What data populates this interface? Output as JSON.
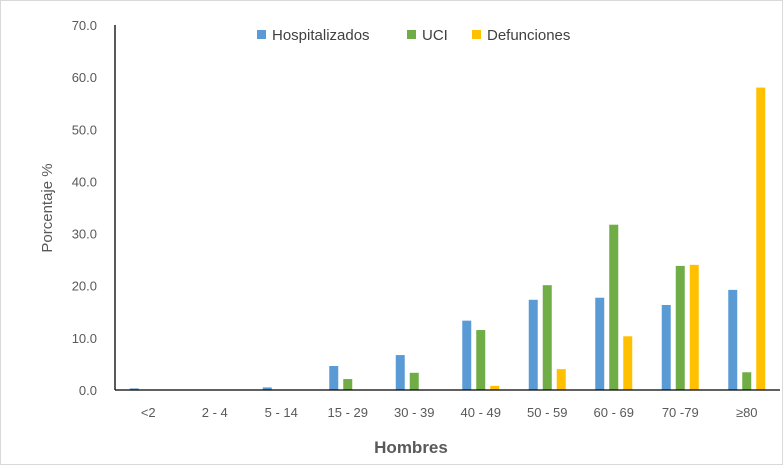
{
  "chart_data": {
    "type": "bar",
    "title": "",
    "xlabel": "Hombres",
    "ylabel": "Porcentaje %",
    "ylim": [
      0,
      70
    ],
    "yticks": [
      "0.0",
      "10.0",
      "20.0",
      "30.0",
      "40.0",
      "50.0",
      "60.0",
      "70.0"
    ],
    "grid": false,
    "legend_position": "top-center",
    "categories": [
      "<2",
      "2 - 4",
      "5 - 14",
      "15 - 29",
      "30 - 39",
      "40 - 49",
      "50 - 59",
      "60 - 69",
      "70 -79",
      "≥80"
    ],
    "series": [
      {
        "name": "Hospitalizados",
        "color": "#5b9bd5",
        "values": [
          0.3,
          0.0,
          0.5,
          4.6,
          6.7,
          13.3,
          17.3,
          17.7,
          16.3,
          19.2
        ]
      },
      {
        "name": "UCI",
        "color": "#70ad47",
        "values": [
          0.0,
          0.0,
          0.0,
          2.1,
          3.3,
          11.5,
          20.1,
          31.7,
          23.8,
          3.4
        ]
      },
      {
        "name": "Defunciones",
        "color": "#ffc000",
        "values": [
          0.0,
          0.0,
          0.0,
          0.0,
          0.0,
          0.8,
          4.0,
          10.3,
          24.0,
          58.0
        ]
      }
    ]
  }
}
